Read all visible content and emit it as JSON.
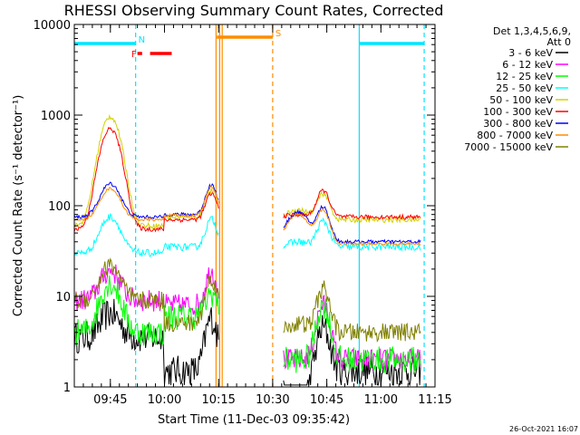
{
  "chart_data": {
    "type": "line",
    "title": "RHESSI Observing Summary Count Rates, Corrected",
    "ylabel": "Corrected Count Rate (s⁻¹ detector⁻¹)",
    "xlabel": "Start Time (11-Dec-03 09:35:42)",
    "y_scale": "log",
    "ylim": [
      1,
      10000
    ],
    "xlim_minutes_after_0935": [
      0,
      100
    ],
    "y_ticks": [
      "1",
      "10",
      "100",
      "1000",
      "10000"
    ],
    "x_ticks": [
      {
        "label": "09:45",
        "minute": 10
      },
      {
        "label": "10:00",
        "minute": 25
      },
      {
        "label": "10:15",
        "minute": 40
      },
      {
        "label": "10:30",
        "minute": 55
      },
      {
        "label": "10:45",
        "minute": 70
      },
      {
        "label": "11:00",
        "minute": 85
      },
      {
        "label": "11:15",
        "minute": 100
      }
    ],
    "legend_header": [
      "Det 1,3,4,5,6,9,",
      "Att 0"
    ],
    "legend_placement": "right",
    "series": [
      {
        "name": "3 - 6 keV",
        "color": "#000000"
      },
      {
        "name": "6 - 12 keV",
        "color": "#ff00ff"
      },
      {
        "name": "12 - 25 keV",
        "color": "#00ff00"
      },
      {
        "name": "25 - 50 keV",
        "color": "#00ffff"
      },
      {
        "name": "50 - 100 keV",
        "color": "#d2d200"
      },
      {
        "name": "100 - 300 keV",
        "color": "#ff0000"
      },
      {
        "name": "300 - 800 keV",
        "color": "#0000ff"
      },
      {
        "name": "800 - 7000 keV",
        "color": "#ff8c00"
      },
      {
        "name": "7000 - 15000 keV",
        "color": "#808000"
      }
    ],
    "flag_bars": [
      {
        "label": "N",
        "color": "#00e5ff",
        "segments": [
          [
            0,
            17
          ],
          [
            79,
            97
          ]
        ]
      },
      {
        "label": "F",
        "color": "#ff0000",
        "segments": [
          [
            17.5,
            18.8
          ],
          [
            21,
            27
          ]
        ]
      },
      {
        "label": "S",
        "color": "#ff8c00",
        "segments": [
          [
            39.5,
            55
          ]
        ]
      }
    ],
    "vertical_markers": [
      {
        "minute": 17,
        "color": "#00e5ff",
        "style": "dashed"
      },
      {
        "minute": 39.3,
        "color": "#ff8c00",
        "style": "solid"
      },
      {
        "minute": 40.3,
        "color": "#ff8c00",
        "style": "solid"
      },
      {
        "minute": 41,
        "color": "#ff8c00",
        "style": "solid"
      },
      {
        "minute": 55,
        "color": "#ff8c00",
        "style": "dashed"
      },
      {
        "minute": 79,
        "color": "#00e5ff",
        "style": "solid"
      },
      {
        "minute": 97,
        "color": "#00e5ff",
        "style": "dashed"
      }
    ],
    "data_gaps_minutes": [
      [
        40,
        58
      ]
    ],
    "footer_date": "26-Oct-2021 16:07"
  }
}
